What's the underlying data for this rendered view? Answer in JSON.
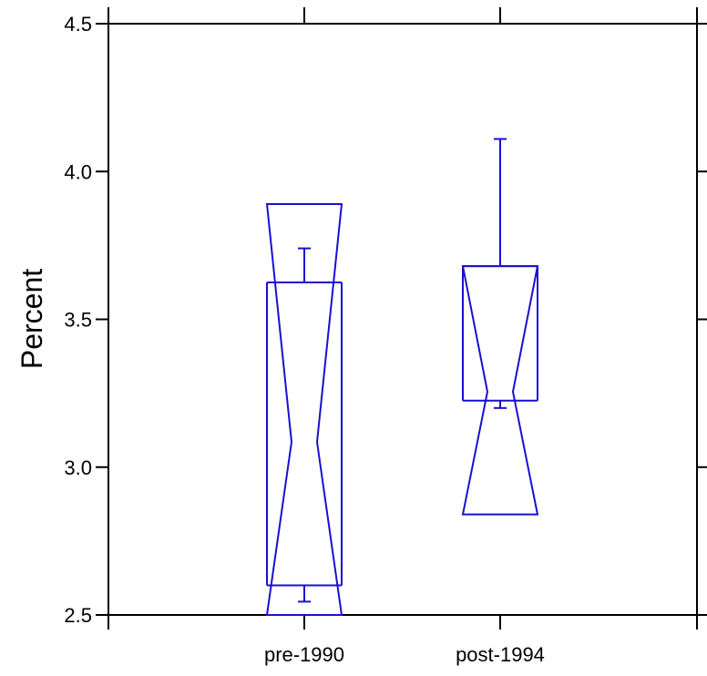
{
  "chart_data": {
    "type": "box-notched",
    "title": "",
    "xlabel": "",
    "ylabel": "Percent",
    "ylim": [
      2.5,
      4.5
    ],
    "yticks": [
      "2.5",
      "3.0",
      "3.5",
      "4.0",
      "4.5"
    ],
    "categories": [
      "pre-1990",
      "post-1994"
    ],
    "color": "#1a0fd0",
    "series": [
      {
        "name": "",
        "boxes": [
          {
            "category": "pre-1990",
            "whisker_low": 2.545,
            "q1": 2.6,
            "median": 3.085,
            "q3": 3.625,
            "whisker_high": 3.74,
            "notch_low": 2.5,
            "notch_high": 3.89
          },
          {
            "category": "post-1994",
            "whisker_low": 3.2,
            "q1": 3.225,
            "median": 3.255,
            "q3": 3.68,
            "whisker_high": 4.11,
            "notch_low": 2.84,
            "notch_high": 3.68
          }
        ]
      }
    ]
  }
}
